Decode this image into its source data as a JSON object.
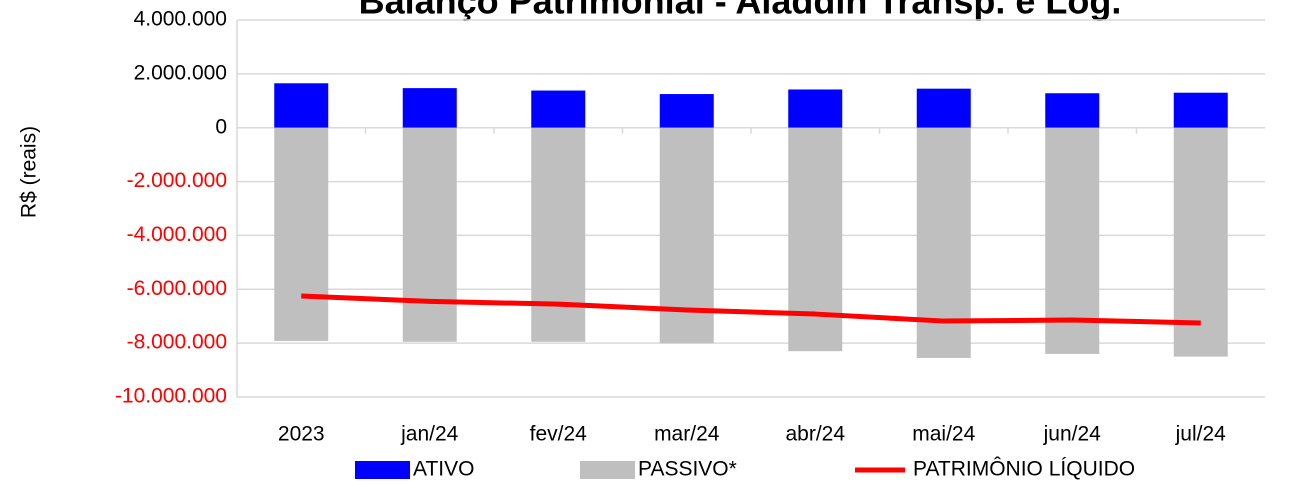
{
  "chart_data": {
    "type": "bar",
    "title": "Balanço Patrimonial - Aladdin Transp. e Log.",
    "y_label": "R$ (reais)",
    "categories": [
      "2023",
      "jan/24",
      "fev/24",
      "mar/24",
      "abr/24",
      "mai/24",
      "jun/24",
      "jul/24"
    ],
    "series": [
      {
        "name": "ATIVO",
        "type": "bar",
        "color": "#0000ff",
        "values": [
          1650000,
          1470000,
          1380000,
          1250000,
          1420000,
          1450000,
          1280000,
          1300000
        ]
      },
      {
        "name": "PASSIVO*",
        "type": "bar",
        "color": "#bfbfbf",
        "values": [
          -7920000,
          -7950000,
          -7950000,
          -8000000,
          -8300000,
          -8550000,
          -8400000,
          -8500000
        ]
      },
      {
        "name": "PATRIMÔNIO LÍQUIDO",
        "type": "line",
        "color": "#ff0000",
        "values": [
          -6250000,
          -6450000,
          -6550000,
          -6770000,
          -6920000,
          -7180000,
          -7140000,
          -7250000
        ]
      }
    ],
    "ylim": [
      -10000000,
      4000000
    ],
    "yticks": [
      {
        "value": -10000000,
        "label": "-10.000.000"
      },
      {
        "value": -8000000,
        "label": "-8.000.000"
      },
      {
        "value": -6000000,
        "label": "-6.000.000"
      },
      {
        "value": -4000000,
        "label": "-4.000.000"
      },
      {
        "value": -2000000,
        "label": "-2.000.000"
      },
      0,
      {
        "value": 2000000,
        "label": "2.000.000"
      },
      {
        "value": 4000000,
        "label": "4.000.000"
      }
    ],
    "negative_tick_color": "#ff0000",
    "grid": true,
    "legend": "bottom"
  }
}
